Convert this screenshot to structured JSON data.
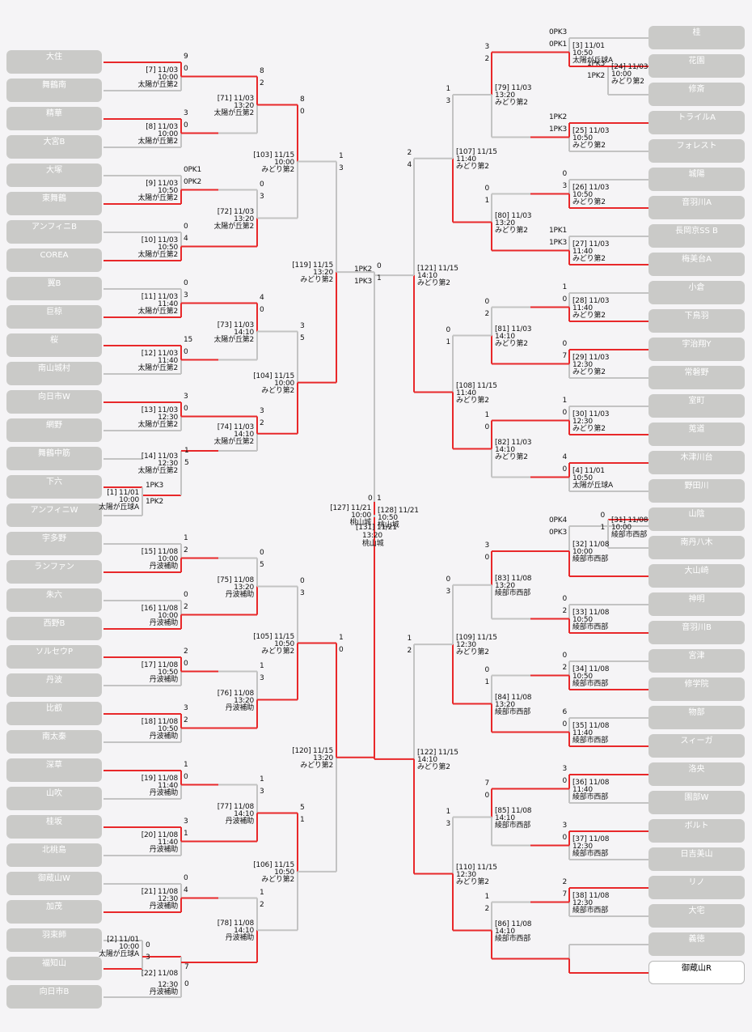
{
  "colors": {
    "win": "#e8282a",
    "lose": "#c3c3c3",
    "team_bg": "#cacac8",
    "page_bg": "#f5f4f6"
  },
  "left_teams": [
    "大住",
    "舞鶴南",
    "精華",
    "大宮B",
    "大塚",
    "東舞鶴",
    "アンフィニB",
    "COREA",
    "翼B",
    "巨椋",
    "桜",
    "南山城村",
    "向日市W",
    "網野",
    "舞鶴中筋",
    "下六",
    "アンフィニW",
    "宇多野",
    "ランファン",
    "朱六",
    "西野B",
    "ソルセウP",
    "丹波",
    "比叡",
    "南太秦",
    "深草",
    "山吹",
    "桂坂",
    "北桃島",
    "御蔵山W",
    "加茂",
    "羽束師",
    "福知山",
    "向日市B"
  ],
  "right_teams": [
    "桂",
    "花園",
    "修斎",
    "トライルA",
    "フォレスト",
    "城陽",
    "音羽川A",
    "長岡京SS B",
    "梅美台A",
    "小倉",
    "下鳥羽",
    "宇治翔Y",
    "常磐野",
    "室町",
    "莵道",
    "木津川台",
    "野田川",
    "山陰",
    "南丹八木",
    "大山崎",
    "神明",
    "音羽川B",
    "宮津",
    "修学院",
    "物部",
    "スィーガ",
    "洛央",
    "園部W",
    "ボルト",
    "日吉美山",
    "リノ",
    "大宅",
    "義徳",
    "御蔵山R"
  ],
  "matches": [
    {
      "info": [
        "[7] 11/03",
        "10:00",
        "太陽が丘第2"
      ],
      "scores": [
        "9",
        "0"
      ]
    },
    {
      "info": [
        "[8] 11/03",
        "10:00",
        "太陽が丘第2"
      ],
      "scores": [
        "3",
        "0"
      ]
    },
    {
      "info": [
        "[9] 11/03",
        "10:50",
        "太陽が丘第2"
      ],
      "scores": [
        "0PK1",
        "0PK2"
      ]
    },
    {
      "info": [
        "[10] 11/03",
        "10:50",
        "太陽が丘第2"
      ],
      "scores": [
        "0",
        "4"
      ]
    },
    {
      "info": [
        "[11] 11/03",
        "11:40",
        "太陽が丘第2"
      ],
      "scores": [
        "0",
        "3"
      ]
    },
    {
      "info": [
        "[12] 11/03",
        "11:40",
        "太陽が丘第2"
      ],
      "scores": [
        "15",
        "0"
      ]
    },
    {
      "info": [
        "[13] 11/03",
        "12:30",
        "太陽が丘第2"
      ],
      "scores": [
        "3",
        "0"
      ]
    },
    {
      "info": [
        "[14] 11/03",
        "12:30",
        "太陽が丘第2"
      ],
      "scores": [
        "1",
        "5"
      ]
    },
    {
      "info": [
        "[1] 11/01",
        "10:00",
        "太陽が丘球A"
      ],
      "scores": [
        "1PK3",
        "1PK2"
      ]
    },
    {
      "info": [
        "[15] 11/08",
        "10:00",
        "丹波補助"
      ],
      "scores": [
        "1",
        "2"
      ]
    },
    {
      "info": [
        "[16] 11/08",
        "10:00",
        "丹波補助"
      ],
      "scores": [
        "0",
        "2"
      ]
    },
    {
      "info": [
        "[17] 11/08",
        "10:50",
        "丹波補助"
      ],
      "scores": [
        "2",
        "0"
      ]
    },
    {
      "info": [
        "[18] 11/08",
        "10:50",
        "丹波補助"
      ],
      "scores": [
        "3",
        "2"
      ]
    },
    {
      "info": [
        "[19] 11/08",
        "11:40",
        "丹波補助"
      ],
      "scores": [
        "1",
        "0"
      ]
    },
    {
      "info": [
        "[20] 11/08",
        "11:40",
        "丹波補助"
      ],
      "scores": [
        "3",
        "1"
      ]
    },
    {
      "info": [
        "[21] 11/08",
        "12:30",
        "丹波補助"
      ],
      "scores": [
        "0",
        "4"
      ]
    },
    {
      "info": [
        "[2] 11/01",
        "10:00",
        "太陽が丘球A"
      ],
      "scores": [
        "0",
        "3"
      ]
    },
    {
      "info": [
        "[22] 11/08",
        "12:30",
        "丹波補助"
      ],
      "scores": [
        "7",
        "0"
      ]
    },
    {
      "info": [
        "[71] 11/03",
        "13:20",
        "太陽が丘第2"
      ],
      "scores": [
        "8",
        "2"
      ]
    },
    {
      "info": [
        "[72] 11/03",
        "13:20",
        "太陽が丘第2"
      ],
      "scores": [
        "0",
        "3"
      ]
    },
    {
      "info": [
        "[73] 11/03",
        "14:10",
        "太陽が丘第2"
      ],
      "scores": [
        "4",
        "0"
      ]
    },
    {
      "info": [
        "[74] 11/03",
        "14:10",
        "太陽が丘第2"
      ],
      "scores": [
        "3",
        "2"
      ]
    },
    {
      "info": [
        "[75] 11/08",
        "13:20",
        "丹波補助"
      ],
      "scores": [
        "0",
        "5"
      ]
    },
    {
      "info": [
        "[76] 11/08",
        "13:20",
        "丹波補助"
      ],
      "scores": [
        "1",
        "3"
      ]
    },
    {
      "info": [
        "[77] 11/08",
        "14:10",
        "丹波補助"
      ],
      "scores": [
        "1",
        "3"
      ]
    },
    {
      "info": [
        "[78] 11/08",
        "14:10",
        "丹波補助"
      ],
      "scores": [
        "1",
        "2"
      ]
    },
    {
      "info": [
        "[103] 11/15",
        "10:00",
        "みどり第2"
      ],
      "scores": [
        "8",
        "0"
      ]
    },
    {
      "info": [
        "[104] 11/15",
        "10:00",
        "みどり第2"
      ],
      "scores": [
        "3",
        "5"
      ]
    },
    {
      "info": [
        "[105] 11/15",
        "10:50",
        "みどり第2"
      ],
      "scores": [
        "0",
        "3"
      ]
    },
    {
      "info": [
        "[106] 11/15",
        "10:50",
        "みどり第2"
      ],
      "scores": [
        "5",
        "1"
      ]
    },
    {
      "info": [
        "[119] 11/15",
        "13:20",
        "みどり第2"
      ],
      "scores": [
        "1",
        "3"
      ]
    },
    {
      "info": [
        "[120] 11/15",
        "13:20",
        "みどり第2"
      ],
      "scores": [
        "1",
        "0"
      ]
    },
    {
      "info": [
        "[127] 11/21",
        "10:00",
        "桃山城"
      ],
      "scores": [
        "0",
        "1"
      ]
    },
    {
      "info": [
        "[131] 11/21",
        "13:20",
        "桃山城"
      ],
      "scores": [
        "0",
        "1"
      ]
    },
    {
      "info": [
        "[128] 11/21",
        "10:50",
        "桃山城"
      ],
      "scores": [
        "1PK2",
        "1PK3"
      ]
    },
    {
      "info": [
        "[121] 11/15",
        "14:10",
        "みどり第2"
      ],
      "scores": [
        "2",
        "4"
      ]
    },
    {
      "info": [
        "[122] 11/15",
        "14:10",
        "みどり第2"
      ],
      "scores": [
        "1",
        "2"
      ]
    },
    {
      "info": [
        "[107] 11/15",
        "11:40",
        "みどり第2"
      ],
      "scores": [
        "1",
        "3"
      ]
    },
    {
      "info": [
        "[108] 11/15",
        "11:40",
        "みどり第2"
      ],
      "scores": [
        "0",
        "1"
      ]
    },
    {
      "info": [
        "[109] 11/15",
        "12:30",
        "みどり第2"
      ],
      "scores": [
        "0",
        "3"
      ]
    },
    {
      "info": [
        "[110] 11/15",
        "12:30",
        "みどり第2"
      ],
      "scores": [
        "1",
        "3"
      ]
    },
    {
      "info": [
        "[79] 11/03",
        "13:20",
        "みどり第2"
      ],
      "scores": [
        "3",
        "2"
      ]
    },
    {
      "info": [
        "[80] 11/03",
        "13:20",
        "みどり第2"
      ],
      "scores": [
        "0",
        "1"
      ]
    },
    {
      "info": [
        "[81] 11/03",
        "14:10",
        "みどり第2"
      ],
      "scores": [
        "0",
        "2"
      ]
    },
    {
      "info": [
        "[82] 11/03",
        "14:10",
        "みどり第2"
      ],
      "scores": [
        "1",
        "0"
      ]
    },
    {
      "info": [
        "[83] 11/08",
        "13:20",
        "綾部市西部"
      ],
      "scores": [
        "3",
        "0"
      ]
    },
    {
      "info": [
        "[84] 11/08",
        "13:20",
        "綾部市西部"
      ],
      "scores": [
        "0",
        "1"
      ]
    },
    {
      "info": [
        "[85] 11/08",
        "14:10",
        "綾部市西部"
      ],
      "scores": [
        "7",
        "0"
      ]
    },
    {
      "info": [
        "[86] 11/08",
        "14:10",
        "綾部市西部"
      ],
      "scores": [
        "1",
        "2"
      ]
    },
    {
      "info": [
        "[23] 11/03",
        "10:00",
        "みどり第2"
      ],
      "scores": [
        "0",
        "2"
      ]
    },
    {
      "info": [
        "[3] 11/01",
        "10:50",
        "太陽が丘球A"
      ],
      "scores": [
        "0PK3",
        "0PK1"
      ]
    },
    {
      "info": [
        "[24] 11/03",
        "10:00",
        "みどり第2"
      ],
      "scores": [
        "1PK3",
        "1PK2"
      ]
    },
    {
      "info": [
        "[25] 11/03",
        "10:50",
        "みどり第2"
      ],
      "scores": [
        "1PK2",
        "1PK3"
      ]
    },
    {
      "info": [
        "[26] 11/03",
        "10:50",
        "みどり第2"
      ],
      "scores": [
        "0",
        "3"
      ]
    },
    {
      "info": [
        "[27] 11/03",
        "11:40",
        "みどり第2"
      ],
      "scores": [
        "1PK1",
        "1PK3"
      ]
    },
    {
      "info": [
        "[28] 11/03",
        "11:40",
        "みどり第2"
      ],
      "scores": [
        "1",
        "0"
      ]
    },
    {
      "info": [
        "[29] 11/03",
        "12:30",
        "みどり第2"
      ],
      "scores": [
        "0",
        "7"
      ]
    },
    {
      "info": [
        "[30] 11/03",
        "12:30",
        "みどり第2"
      ],
      "scores": [
        "1",
        "0"
      ]
    },
    {
      "info": [
        "[4] 11/01",
        "10:50",
        "太陽が丘球A"
      ],
      "scores": [
        "4",
        "0"
      ]
    },
    {
      "info": [
        "[31] 11/08",
        "10:00",
        "綾部市西部"
      ],
      "scores": [
        "0",
        "1"
      ]
    },
    {
      "info": [
        "[32] 11/08",
        "10:00",
        "綾部市西部"
      ],
      "scores": [
        "0PK4",
        "0PK3"
      ]
    },
    {
      "info": [
        "[33] 11/08",
        "10:50",
        "綾部市西部"
      ],
      "scores": [
        "0",
        "2"
      ]
    },
    {
      "info": [
        "[34] 11/08",
        "10:50",
        "綾部市西部"
      ],
      "scores": [
        "0",
        "2"
      ]
    },
    {
      "info": [
        "[35] 11/08",
        "11:40",
        "綾部市西部"
      ],
      "scores": [
        "6",
        "0"
      ]
    },
    {
      "info": [
        "[36] 11/08",
        "11:40",
        "綾部市西部"
      ],
      "scores": [
        "3",
        "0"
      ]
    },
    {
      "info": [
        "[37] 11/08",
        "12:30",
        "綾部市西部"
      ],
      "scores": [
        "3",
        "0"
      ]
    },
    {
      "info": [
        "[38] 11/08",
        "12:30",
        "綾部市西部"
      ],
      "scores": [
        "2",
        "7"
      ]
    }
  ]
}
